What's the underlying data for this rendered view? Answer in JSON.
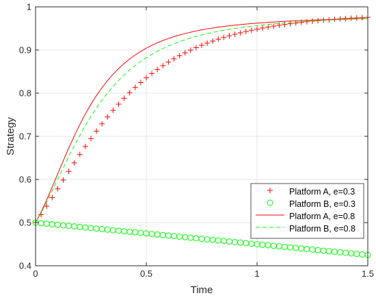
{
  "chart_data": {
    "type": "line",
    "title": "",
    "xlabel": "Time",
    "ylabel": "Strategy",
    "xlim": [
      0,
      1.5
    ],
    "ylim": [
      0.4,
      1.0
    ],
    "xticks": [
      "0",
      "0.5",
      "1",
      "1.5"
    ],
    "yticks": [
      "0.4",
      "0.5",
      "0.6",
      "0.7",
      "0.8",
      "0.9",
      "1"
    ],
    "grid": true,
    "legend_position": "bottom-right",
    "series": [
      {
        "name": "Platform A, e=0.3",
        "color": "#ff0000",
        "style": "markers-plus",
        "x": [
          0.0,
          0.025,
          0.05,
          0.075,
          0.1,
          0.125,
          0.15,
          0.175,
          0.2,
          0.225,
          0.25,
          0.275,
          0.3,
          0.325,
          0.35,
          0.375,
          0.4,
          0.425,
          0.45,
          0.475,
          0.5,
          0.525,
          0.55,
          0.575,
          0.6,
          0.625,
          0.65,
          0.675,
          0.7,
          0.725,
          0.75,
          0.775,
          0.8,
          0.825,
          0.85,
          0.875,
          0.9,
          0.925,
          0.95,
          0.975,
          1.0,
          1.025,
          1.05,
          1.075,
          1.1,
          1.125,
          1.15,
          1.175,
          1.2,
          1.225,
          1.25,
          1.275,
          1.3,
          1.325,
          1.35,
          1.375,
          1.4,
          1.425,
          1.45,
          1.475,
          1.5
        ],
        "y": [
          0.5,
          0.5183,
          0.538,
          0.5581,
          0.5784,
          0.5986,
          0.6187,
          0.6384,
          0.6577,
          0.6765,
          0.6947,
          0.7121,
          0.7289,
          0.7449,
          0.7601,
          0.7745,
          0.7882,
          0.8011,
          0.8133,
          0.8247,
          0.8355,
          0.8455,
          0.8549,
          0.8637,
          0.872,
          0.8796,
          0.8868,
          0.8935,
          0.8997,
          0.9055,
          0.911,
          0.916,
          0.9207,
          0.9251,
          0.9292,
          0.933,
          0.9365,
          0.9398,
          0.9429,
          0.9457,
          0.9484,
          0.9509,
          0.9532,
          0.9553,
          0.9573,
          0.9592,
          0.9609,
          0.9625,
          0.964,
          0.9654,
          0.9667,
          0.9679,
          0.9691,
          0.9701,
          0.9711,
          0.972,
          0.9729,
          0.9737,
          0.9744,
          0.9751,
          0.9758
        ]
      },
      {
        "name": "Platform B, e=0.3",
        "color": "#00ff00",
        "style": "markers-circle",
        "x": [
          0.0,
          0.025,
          0.05,
          0.075,
          0.1,
          0.125,
          0.15,
          0.175,
          0.2,
          0.225,
          0.25,
          0.275,
          0.3,
          0.325,
          0.35,
          0.375,
          0.4,
          0.425,
          0.45,
          0.475,
          0.5,
          0.525,
          0.55,
          0.575,
          0.6,
          0.625,
          0.65,
          0.675,
          0.7,
          0.725,
          0.75,
          0.775,
          0.8,
          0.825,
          0.85,
          0.875,
          0.9,
          0.925,
          0.95,
          0.975,
          1.0,
          1.025,
          1.05,
          1.075,
          1.1,
          1.125,
          1.15,
          1.175,
          1.2,
          1.225,
          1.25,
          1.275,
          1.3,
          1.325,
          1.35,
          1.375,
          1.4,
          1.425,
          1.45,
          1.475,
          1.5
        ],
        "y": [
          0.5,
          0.4987,
          0.4975,
          0.4962,
          0.495,
          0.4937,
          0.4925,
          0.4912,
          0.49,
          0.4887,
          0.4875,
          0.4862,
          0.485,
          0.4837,
          0.4825,
          0.4812,
          0.48,
          0.4787,
          0.4775,
          0.4762,
          0.475,
          0.4737,
          0.4725,
          0.4712,
          0.47,
          0.4687,
          0.4675,
          0.4662,
          0.465,
          0.4637,
          0.4625,
          0.4612,
          0.46,
          0.4587,
          0.4575,
          0.4562,
          0.455,
          0.4537,
          0.4525,
          0.4512,
          0.45,
          0.4487,
          0.4475,
          0.4462,
          0.445,
          0.4437,
          0.4425,
          0.4412,
          0.44,
          0.4387,
          0.4375,
          0.4362,
          0.435,
          0.4337,
          0.4325,
          0.4312,
          0.43,
          0.4287,
          0.4275,
          0.4262,
          0.425
        ]
      },
      {
        "name": "Platform A, e=0.8",
        "color": "#ff0000",
        "style": "solid",
        "x": [
          0.0,
          0.025,
          0.05,
          0.075,
          0.1,
          0.125,
          0.15,
          0.175,
          0.2,
          0.225,
          0.25,
          0.275,
          0.3,
          0.325,
          0.35,
          0.375,
          0.4,
          0.425,
          0.45,
          0.475,
          0.5,
          0.525,
          0.55,
          0.575,
          0.6,
          0.625,
          0.65,
          0.675,
          0.7,
          0.725,
          0.75,
          0.775,
          0.8,
          0.825,
          0.85,
          0.875,
          0.9,
          0.925,
          0.95,
          0.975,
          1.0,
          1.025,
          1.05,
          1.075,
          1.1,
          1.125,
          1.15,
          1.175,
          1.2,
          1.225,
          1.25,
          1.275,
          1.3,
          1.325,
          1.35,
          1.375,
          1.4,
          1.425,
          1.45,
          1.475,
          1.5
        ],
        "y": [
          0.5,
          0.5243,
          0.5522,
          0.582,
          0.6127,
          0.6431,
          0.6727,
          0.7009,
          0.7273,
          0.7517,
          0.7741,
          0.7944,
          0.8127,
          0.8291,
          0.8438,
          0.857,
          0.8687,
          0.8792,
          0.8885,
          0.8968,
          0.9042,
          0.9108,
          0.9167,
          0.922,
          0.9267,
          0.9309,
          0.9347,
          0.9382,
          0.9413,
          0.9441,
          0.9466,
          0.9489,
          0.951,
          0.9529,
          0.9546,
          0.9562,
          0.9576,
          0.959,
          0.9602,
          0.9613,
          0.9623,
          0.9632,
          0.9641,
          0.9649,
          0.9657,
          0.9664,
          0.967,
          0.9676,
          0.9682,
          0.9687,
          0.9692,
          0.9697,
          0.9701,
          0.9705,
          0.9709,
          0.9713,
          0.9716,
          0.9719,
          0.9722,
          0.9725,
          0.9728
        ]
      },
      {
        "name": "Platform B, e=0.8",
        "color": "#00ff00",
        "style": "dashed",
        "x": [
          0.0,
          0.025,
          0.05,
          0.075,
          0.1,
          0.125,
          0.15,
          0.175,
          0.2,
          0.225,
          0.25,
          0.275,
          0.3,
          0.325,
          0.35,
          0.375,
          0.4,
          0.425,
          0.45,
          0.475,
          0.5,
          0.525,
          0.55,
          0.575,
          0.6,
          0.625,
          0.65,
          0.675,
          0.7,
          0.725,
          0.75,
          0.775,
          0.8,
          0.825,
          0.85,
          0.875,
          0.9,
          0.925,
          0.95,
          0.975,
          1.0,
          1.025,
          1.05,
          1.075,
          1.1,
          1.125,
          1.15,
          1.175,
          1.2,
          1.225,
          1.25,
          1.275,
          1.3,
          1.325,
          1.35,
          1.375,
          1.4,
          1.425,
          1.45,
          1.475,
          1.5
        ],
        "y": [
          0.5,
          0.5223,
          0.5472,
          0.5735,
          0.6003,
          0.627,
          0.6531,
          0.6783,
          0.7022,
          0.7248,
          0.7459,
          0.7655,
          0.7836,
          0.8003,
          0.8155,
          0.8295,
          0.8422,
          0.8537,
          0.8641,
          0.8736,
          0.8822,
          0.89,
          0.8971,
          0.9035,
          0.9093,
          0.9146,
          0.9194,
          0.9238,
          0.9278,
          0.9315,
          0.9348,
          0.9379,
          0.9407,
          0.9433,
          0.9457,
          0.9479,
          0.9499,
          0.9518,
          0.9535,
          0.9551,
          0.9566,
          0.958,
          0.9593,
          0.9605,
          0.9616,
          0.9627,
          0.9637,
          0.9646,
          0.9655,
          0.9663,
          0.9671,
          0.9678,
          0.9685,
          0.9692,
          0.9698,
          0.9704,
          0.971,
          0.9715,
          0.972,
          0.9725,
          0.973
        ]
      }
    ]
  }
}
